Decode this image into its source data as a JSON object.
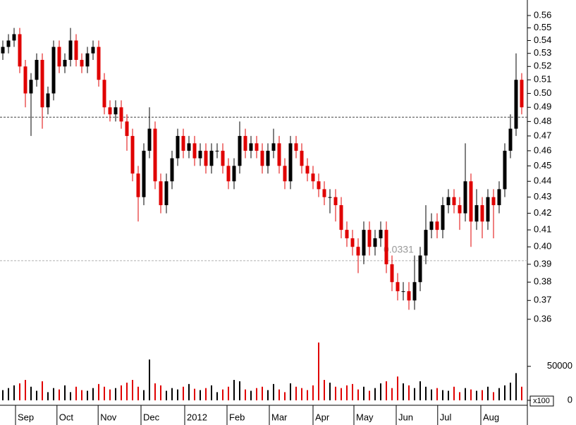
{
  "chart_data": {
    "type": "candlestick",
    "log_scale": true,
    "ylim": [
      0.36,
      0.56
    ],
    "yticks": [
      0.36,
      0.37,
      0.38,
      0.39,
      {
        "value": 0.4,
        "label": "0.40"
      },
      0.41,
      0.42,
      0.43,
      0.44,
      0.45,
      0.46,
      0.47,
      0.48,
      0.49,
      {
        "value": 0.5,
        "label": "0.50"
      },
      0.51,
      0.52,
      0.53,
      0.54,
      0.55,
      0.56
    ],
    "xlim": [
      0,
      93.5
    ],
    "xticks": [
      {
        "value": 2.75,
        "label": "Sep"
      },
      {
        "value": 10.1,
        "label": "Oct"
      },
      {
        "value": 17.4,
        "label": "Nov"
      },
      {
        "value": 25,
        "label": "Dec"
      },
      {
        "value": 32.75,
        "label": "2012"
      },
      {
        "value": 40.25,
        "label": "Feb"
      },
      {
        "value": 47.75,
        "label": "Mar"
      },
      {
        "value": 55.5,
        "label": "Apr"
      },
      {
        "value": 62.75,
        "label": "May"
      },
      {
        "value": 70.25,
        "label": "Jun"
      },
      {
        "value": 77.6,
        "label": "Jul"
      },
      {
        "value": 85.25,
        "label": "Aug"
      }
    ],
    "colors": {
      "up": "#000000",
      "down": "#e00000"
    },
    "opens": [
      0.53,
      0.535,
      0.54,
      0.545,
      0.52,
      0.5,
      0.51,
      0.525,
      0.49,
      0.5,
      0.535,
      0.52,
      0.525,
      0.54,
      0.525,
      0.52,
      0.53,
      0.535,
      0.51,
      0.49,
      0.485,
      0.49,
      0.48,
      0.47,
      0.445,
      0.43,
      0.46,
      0.475,
      0.44,
      0.425,
      0.44,
      0.455,
      0.47,
      0.46,
      0.465,
      0.455,
      0.46,
      0.45,
      0.46,
      0.46,
      0.45,
      0.44,
      0.45,
      0.47,
      0.46,
      0.465,
      0.46,
      0.45,
      0.46,
      0.465,
      0.45,
      0.44,
      0.465,
      0.46,
      0.45,
      0.445,
      0.44,
      0.435,
      0.43,
      0.43,
      0.425,
      0.41,
      0.405,
      0.4,
      0.395,
      0.41,
      0.4,
      0.405,
      0.41,
      0.39,
      0.38,
      0.375,
      0.375,
      0.37,
      0.38,
      0.395,
      0.41,
      0.415,
      0.41,
      0.425,
      0.43,
      0.425,
      0.42,
      0.44,
      0.415,
      0.425,
      0.415,
      0.43,
      0.425,
      0.435,
      0.46,
      0.475,
      0.51
    ],
    "highs": [
      0.54,
      0.545,
      0.55,
      0.55,
      0.525,
      0.515,
      0.53,
      0.53,
      0.505,
      0.54,
      0.54,
      0.53,
      0.55,
      0.545,
      0.53,
      0.535,
      0.54,
      0.54,
      0.515,
      0.495,
      0.495,
      0.495,
      0.485,
      0.475,
      0.45,
      0.465,
      0.49,
      0.48,
      0.445,
      0.445,
      0.46,
      0.475,
      0.475,
      0.47,
      0.47,
      0.465,
      0.465,
      0.465,
      0.465,
      0.465,
      0.455,
      0.455,
      0.48,
      0.475,
      0.47,
      0.47,
      0.465,
      0.465,
      0.475,
      0.47,
      0.455,
      0.47,
      0.47,
      0.465,
      0.455,
      0.45,
      0.445,
      0.44,
      0.435,
      0.435,
      0.43,
      0.415,
      0.41,
      0.405,
      0.415,
      0.415,
      0.41,
      0.415,
      0.415,
      0.395,
      0.385,
      0.38,
      0.38,
      0.395,
      0.4,
      0.425,
      0.42,
      0.42,
      0.43,
      0.435,
      0.435,
      0.43,
      0.465,
      0.445,
      0.435,
      0.43,
      0.435,
      0.435,
      0.44,
      0.465,
      0.485,
      0.53,
      0.515
    ],
    "lows": [
      0.525,
      0.53,
      0.535,
      0.515,
      0.49,
      0.47,
      0.505,
      0.475,
      0.485,
      0.495,
      0.515,
      0.515,
      0.52,
      0.52,
      0.515,
      0.515,
      0.525,
      0.505,
      0.485,
      0.48,
      0.48,
      0.475,
      0.46,
      0.44,
      0.415,
      0.425,
      0.455,
      0.435,
      0.42,
      0.42,
      0.435,
      0.45,
      0.455,
      0.455,
      0.45,
      0.45,
      0.445,
      0.445,
      0.455,
      0.445,
      0.435,
      0.435,
      0.445,
      0.455,
      0.455,
      0.455,
      0.445,
      0.445,
      0.455,
      0.445,
      0.435,
      0.435,
      0.455,
      0.445,
      0.44,
      0.435,
      0.43,
      0.425,
      0.42,
      0.415,
      0.405,
      0.4,
      0.395,
      0.385,
      0.39,
      0.395,
      0.395,
      0.4,
      0.385,
      0.375,
      0.37,
      0.37,
      0.365,
      0.365,
      0.375,
      0.39,
      0.405,
      0.405,
      0.405,
      0.42,
      0.42,
      0.41,
      0.415,
      0.4,
      0.41,
      0.405,
      0.41,
      0.405,
      0.42,
      0.43,
      0.455,
      0.47,
      0.485
    ],
    "closes": [
      0.535,
      0.54,
      0.545,
      0.52,
      0.5,
      0.51,
      0.525,
      0.49,
      0.5,
      0.535,
      0.52,
      0.525,
      0.54,
      0.525,
      0.52,
      0.53,
      0.535,
      0.51,
      0.49,
      0.485,
      0.49,
      0.48,
      0.47,
      0.445,
      0.43,
      0.46,
      0.475,
      0.44,
      0.425,
      0.44,
      0.455,
      0.47,
      0.46,
      0.465,
      0.455,
      0.46,
      0.45,
      0.46,
      0.46,
      0.45,
      0.44,
      0.45,
      0.47,
      0.46,
      0.465,
      0.46,
      0.45,
      0.46,
      0.465,
      0.45,
      0.44,
      0.465,
      0.46,
      0.45,
      0.445,
      0.44,
      0.435,
      0.43,
      0.43,
      0.425,
      0.41,
      0.405,
      0.4,
      0.395,
      0.41,
      0.4,
      0.405,
      0.41,
      0.39,
      0.38,
      0.375,
      0.375,
      0.37,
      0.38,
      0.395,
      0.41,
      0.415,
      0.41,
      0.425,
      0.43,
      0.425,
      0.42,
      0.44,
      0.415,
      0.425,
      0.415,
      0.43,
      0.425,
      0.435,
      0.46,
      0.475,
      0.51,
      0.49
    ],
    "volume": {
      "ylim": [
        0,
        85000
      ],
      "yticks": [
        0,
        50000
      ],
      "unit_label": "x100",
      "values": [
        15000,
        18000,
        22000,
        25000,
        30000,
        20000,
        14000,
        28000,
        12000,
        18000,
        16000,
        22000,
        12000,
        20000,
        15000,
        14000,
        18000,
        24000,
        20000,
        16000,
        18000,
        22000,
        26000,
        30000,
        20000,
        15000,
        60000,
        25000,
        22000,
        14000,
        18000,
        16000,
        20000,
        24000,
        17000,
        15000,
        18000,
        22000,
        12000,
        16000,
        20000,
        30000,
        28000,
        16000,
        14000,
        18000,
        20000,
        15000,
        24000,
        16000,
        12000,
        25000,
        20000,
        18000,
        15000,
        22000,
        85000,
        30000,
        26000,
        20000,
        18000,
        22000,
        24000,
        16000,
        20000,
        14000,
        18000,
        25000,
        28000,
        18000,
        35000,
        25000,
        22000,
        18000,
        28000,
        20000,
        16000,
        18000,
        15000,
        14000,
        20000,
        12000,
        18000,
        16000,
        14000,
        15000,
        20000,
        12000,
        18000,
        22000,
        26000,
        40000,
        20000
      ]
    },
    "hlines": [
      {
        "value": 0.483,
        "color": "#444444"
      },
      {
        "value": 0.392,
        "color": "#b0b0b0"
      }
    ],
    "annotation": "0.0331"
  }
}
